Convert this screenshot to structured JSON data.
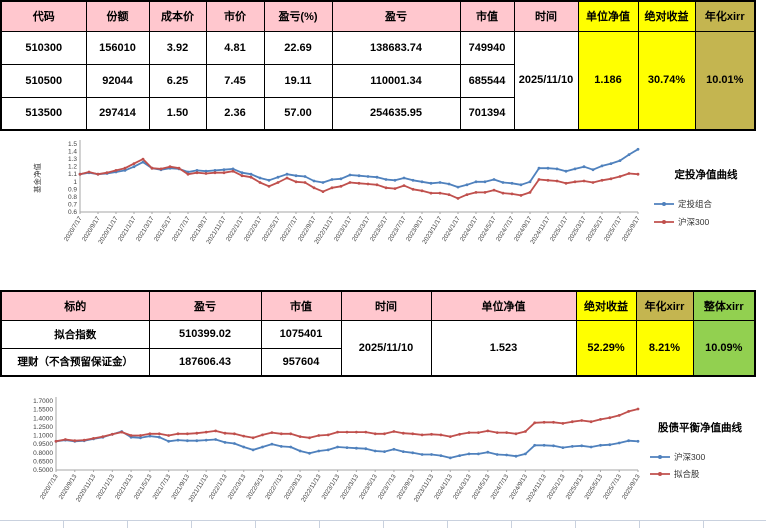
{
  "table1": {
    "headers": [
      "代码",
      "份额",
      "成本价",
      "市价",
      "盈亏(%)",
      "盈亏",
      "市值",
      "时间",
      "单位净值",
      "绝对收益",
      "年化xirr"
    ],
    "rows": [
      [
        "510300",
        "156010",
        "3.92",
        "4.81",
        "22.69",
        "138683.74",
        "749940"
      ],
      [
        "510500",
        "92044",
        "6.25",
        "7.45",
        "19.11",
        "110001.34",
        "685544"
      ],
      [
        "513500",
        "297414",
        "1.50",
        "2.36",
        "57.00",
        "254635.95",
        "701394"
      ]
    ],
    "merged": {
      "time": "2025/11/10",
      "nav": "1.186",
      "abs_return": "30.74%",
      "xirr": "10.01%"
    }
  },
  "table2": {
    "headers": [
      "标的",
      "盈亏",
      "市值",
      "时间",
      "单位净值",
      "绝对收益",
      "年化xirr",
      "整体xirr"
    ],
    "rows": [
      [
        "拟合指数",
        "510399.02",
        "1075401"
      ],
      [
        "理财（不含预留保证金）",
        "187606.43",
        "957604"
      ]
    ],
    "merged": {
      "time": "2025/11/10",
      "nav": "1.523",
      "abs_return": "52.29%",
      "xirr": "8.21%",
      "overall_xirr": "10.09%"
    }
  },
  "colors": {
    "header_pink": "#FFC7CE",
    "header_red_text": "#E00000",
    "yellow": "#FFFF00",
    "khaki": "#C4B550",
    "green": "#92D050",
    "orange_text": "#E36C09",
    "line_blue": "#4F81BD",
    "line_red": "#C0504D"
  },
  "chart_data": [
    {
      "type": "line",
      "title": "定投净值曲线",
      "ylabel": "基金净值",
      "ylim": [
        0.6,
        1.5
      ],
      "y_ticks": [
        "1.5",
        "1.4",
        "1.3",
        "1.2",
        "1.1",
        "1",
        "0.9",
        "0.8",
        "0.7",
        "0.6"
      ],
      "legend_position": "right",
      "x_tick_labels": [
        "2020/7/17",
        "2020/9/17",
        "2020/11/17",
        "2021/1/17",
        "2021/3/17",
        "2021/5/17",
        "2021/7/17",
        "2021/9/17",
        "2021/11/17",
        "2022/1/17",
        "2022/3/17",
        "2022/5/17",
        "2022/7/17",
        "2022/9/17",
        "2022/11/17",
        "2023/1/17",
        "2023/3/17",
        "2023/5/17",
        "2023/7/17",
        "2023/9/17",
        "2023/11/17",
        "2024/1/17",
        "2024/3/17",
        "2024/5/17",
        "2024/7/17",
        "2024/9/17",
        "2024/11/17",
        "2025/1/17",
        "2025/3/17",
        "2025/5/17",
        "2025/7/17",
        "2025/9/17"
      ],
      "series": [
        {
          "name": "定投组合",
          "color": "#4F81BD",
          "values": [
            1.1,
            1.12,
            1.1,
            1.11,
            1.13,
            1.15,
            1.2,
            1.26,
            1.18,
            1.16,
            1.18,
            1.17,
            1.13,
            1.15,
            1.14,
            1.15,
            1.16,
            1.17,
            1.12,
            1.1,
            1.05,
            1.02,
            1.06,
            1.1,
            1.08,
            1.07,
            1.01,
            0.99,
            1.03,
            1.04,
            1.09,
            1.08,
            1.07,
            1.06,
            1.03,
            1.02,
            1.05,
            1.02,
            1.0,
            0.98,
            0.99,
            0.97,
            0.93,
            0.96,
            1.0,
            1.0,
            1.03,
            0.99,
            0.98,
            0.96,
            1.0,
            1.18,
            1.18,
            1.17,
            1.14,
            1.17,
            1.2,
            1.16,
            1.21,
            1.24,
            1.28,
            1.36,
            1.43
          ]
        },
        {
          "name": "沪深300",
          "color": "#C0504D",
          "values": [
            1.1,
            1.13,
            1.1,
            1.12,
            1.15,
            1.18,
            1.24,
            1.3,
            1.18,
            1.17,
            1.2,
            1.18,
            1.1,
            1.12,
            1.11,
            1.12,
            1.12,
            1.14,
            1.08,
            1.06,
            0.99,
            0.94,
            0.99,
            1.05,
            1.0,
            0.99,
            0.92,
            0.87,
            0.92,
            0.94,
            0.99,
            0.98,
            0.97,
            0.96,
            0.92,
            0.91,
            0.95,
            0.9,
            0.88,
            0.85,
            0.85,
            0.83,
            0.78,
            0.83,
            0.86,
            0.86,
            0.89,
            0.85,
            0.84,
            0.82,
            0.86,
            1.03,
            1.02,
            1.01,
            0.98,
            1.0,
            1.01,
            0.99,
            1.02,
            1.04,
            1.07,
            1.11,
            1.1
          ]
        }
      ]
    },
    {
      "type": "line",
      "title": "股债平衡净值曲线",
      "ylabel": "",
      "ylim": [
        0.5,
        1.7
      ],
      "y_ticks": [
        "1.7000",
        "1.5500",
        "1.4000",
        "1.2500",
        "1.1000",
        "0.9500",
        "0.8000",
        "0.6500",
        "0.5000"
      ],
      "legend_position": "right",
      "x_tick_labels": [
        "2020/7/13",
        "2020/9/13",
        "2020/11/13",
        "2021/1/13",
        "2021/3/13",
        "2021/5/13",
        "2021/7/13",
        "2021/9/13",
        "2021/11/13",
        "2022/1/13",
        "2022/3/13",
        "2022/5/13",
        "2022/7/13",
        "2022/9/13",
        "2022/11/13",
        "2023/1/13",
        "2023/3/13",
        "2023/5/13",
        "2023/7/13",
        "2023/9/13",
        "2023/11/13",
        "2024/1/13",
        "2024/3/13",
        "2024/5/13",
        "2024/7/13",
        "2024/9/13",
        "2024/11/13",
        "2025/1/13",
        "2025/3/13",
        "2025/5/13",
        "2025/7/13",
        "2025/9/13"
      ],
      "series": [
        {
          "name": "沪深300",
          "color": "#4F81BD",
          "values": [
            1.0,
            1.02,
            1.0,
            1.01,
            1.04,
            1.07,
            1.12,
            1.17,
            1.07,
            1.06,
            1.09,
            1.07,
            1.0,
            1.02,
            1.01,
            1.01,
            1.02,
            1.03,
            0.98,
            0.96,
            0.9,
            0.85,
            0.9,
            0.95,
            0.91,
            0.9,
            0.83,
            0.79,
            0.83,
            0.85,
            0.9,
            0.89,
            0.88,
            0.87,
            0.83,
            0.82,
            0.86,
            0.82,
            0.8,
            0.77,
            0.77,
            0.75,
            0.71,
            0.75,
            0.78,
            0.78,
            0.81,
            0.77,
            0.76,
            0.74,
            0.78,
            0.93,
            0.93,
            0.92,
            0.89,
            0.91,
            0.92,
            0.9,
            0.93,
            0.94,
            0.97,
            1.01,
            1.0
          ]
        },
        {
          "name": "拟合股",
          "color": "#C0504D",
          "values": [
            1.0,
            1.03,
            1.01,
            1.02,
            1.05,
            1.08,
            1.12,
            1.16,
            1.1,
            1.1,
            1.13,
            1.13,
            1.1,
            1.13,
            1.13,
            1.14,
            1.16,
            1.18,
            1.14,
            1.13,
            1.09,
            1.06,
            1.11,
            1.15,
            1.13,
            1.13,
            1.08,
            1.06,
            1.1,
            1.11,
            1.16,
            1.16,
            1.16,
            1.16,
            1.13,
            1.13,
            1.17,
            1.14,
            1.13,
            1.11,
            1.12,
            1.11,
            1.08,
            1.12,
            1.15,
            1.15,
            1.18,
            1.15,
            1.15,
            1.13,
            1.17,
            1.32,
            1.33,
            1.33,
            1.31,
            1.34,
            1.36,
            1.34,
            1.38,
            1.41,
            1.45,
            1.52,
            1.56
          ]
        }
      ]
    }
  ]
}
